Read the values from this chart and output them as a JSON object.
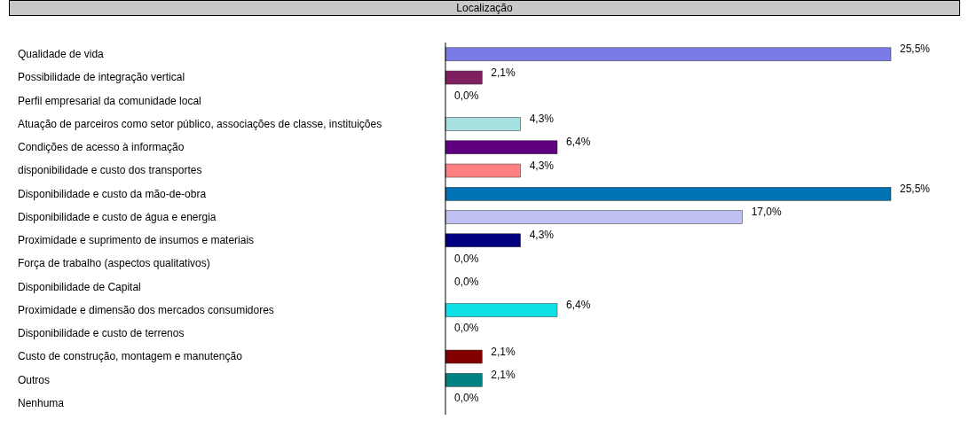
{
  "chart_data": {
    "type": "bar",
    "orientation": "horizontal",
    "title": "Localização",
    "categories": [
      "Qualidade de vida",
      "Possibilidade de integração vertical",
      "Perfil empresarial da comunidade local",
      "Atuação de parceiros como setor público, associações de classe, instituições",
      "Condições de acesso à informação",
      "disponibilidade e custo dos transportes",
      "Disponibilidade e custo da mão-de-obra",
      "Disponibilidade e custo de água e energia",
      "Proximidade e suprimento de insumos e materiais",
      "Força de trabalho (aspectos qualitativos)",
      "Disponibilidade de Capital",
      "Proximidade e dimensão dos mercados consumidores",
      "Disponibilidade e custo de terrenos",
      "Custo de construção, montagem e manutenção",
      "Outros",
      "Nenhuma"
    ],
    "values": [
      25.5,
      2.1,
      0.0,
      4.3,
      6.4,
      4.3,
      25.5,
      17.0,
      4.3,
      0.0,
      0.0,
      6.4,
      0.0,
      2.1,
      2.1,
      0.0
    ],
    "value_labels": [
      "25,5%",
      "2,1%",
      "0,0%",
      "4,3%",
      "6,4%",
      "4,3%",
      "25,5%",
      "17,0%",
      "4,3%",
      "0,0%",
      "0,0%",
      "6,4%",
      "0,0%",
      "2,1%",
      "2,1%",
      "0,0%"
    ],
    "colors": [
      "#7b7be8",
      "#7e1f60",
      "#7b7be8",
      "#a6e0e0",
      "#600080",
      "#ff8080",
      "#0072b4",
      "#c0c0f2",
      "#000080",
      "#7b7be8",
      "#7b7be8",
      "#10e0e8",
      "#7b7be8",
      "#800000",
      "#008080",
      "#7b7be8"
    ],
    "grid": false,
    "legend": false
  }
}
